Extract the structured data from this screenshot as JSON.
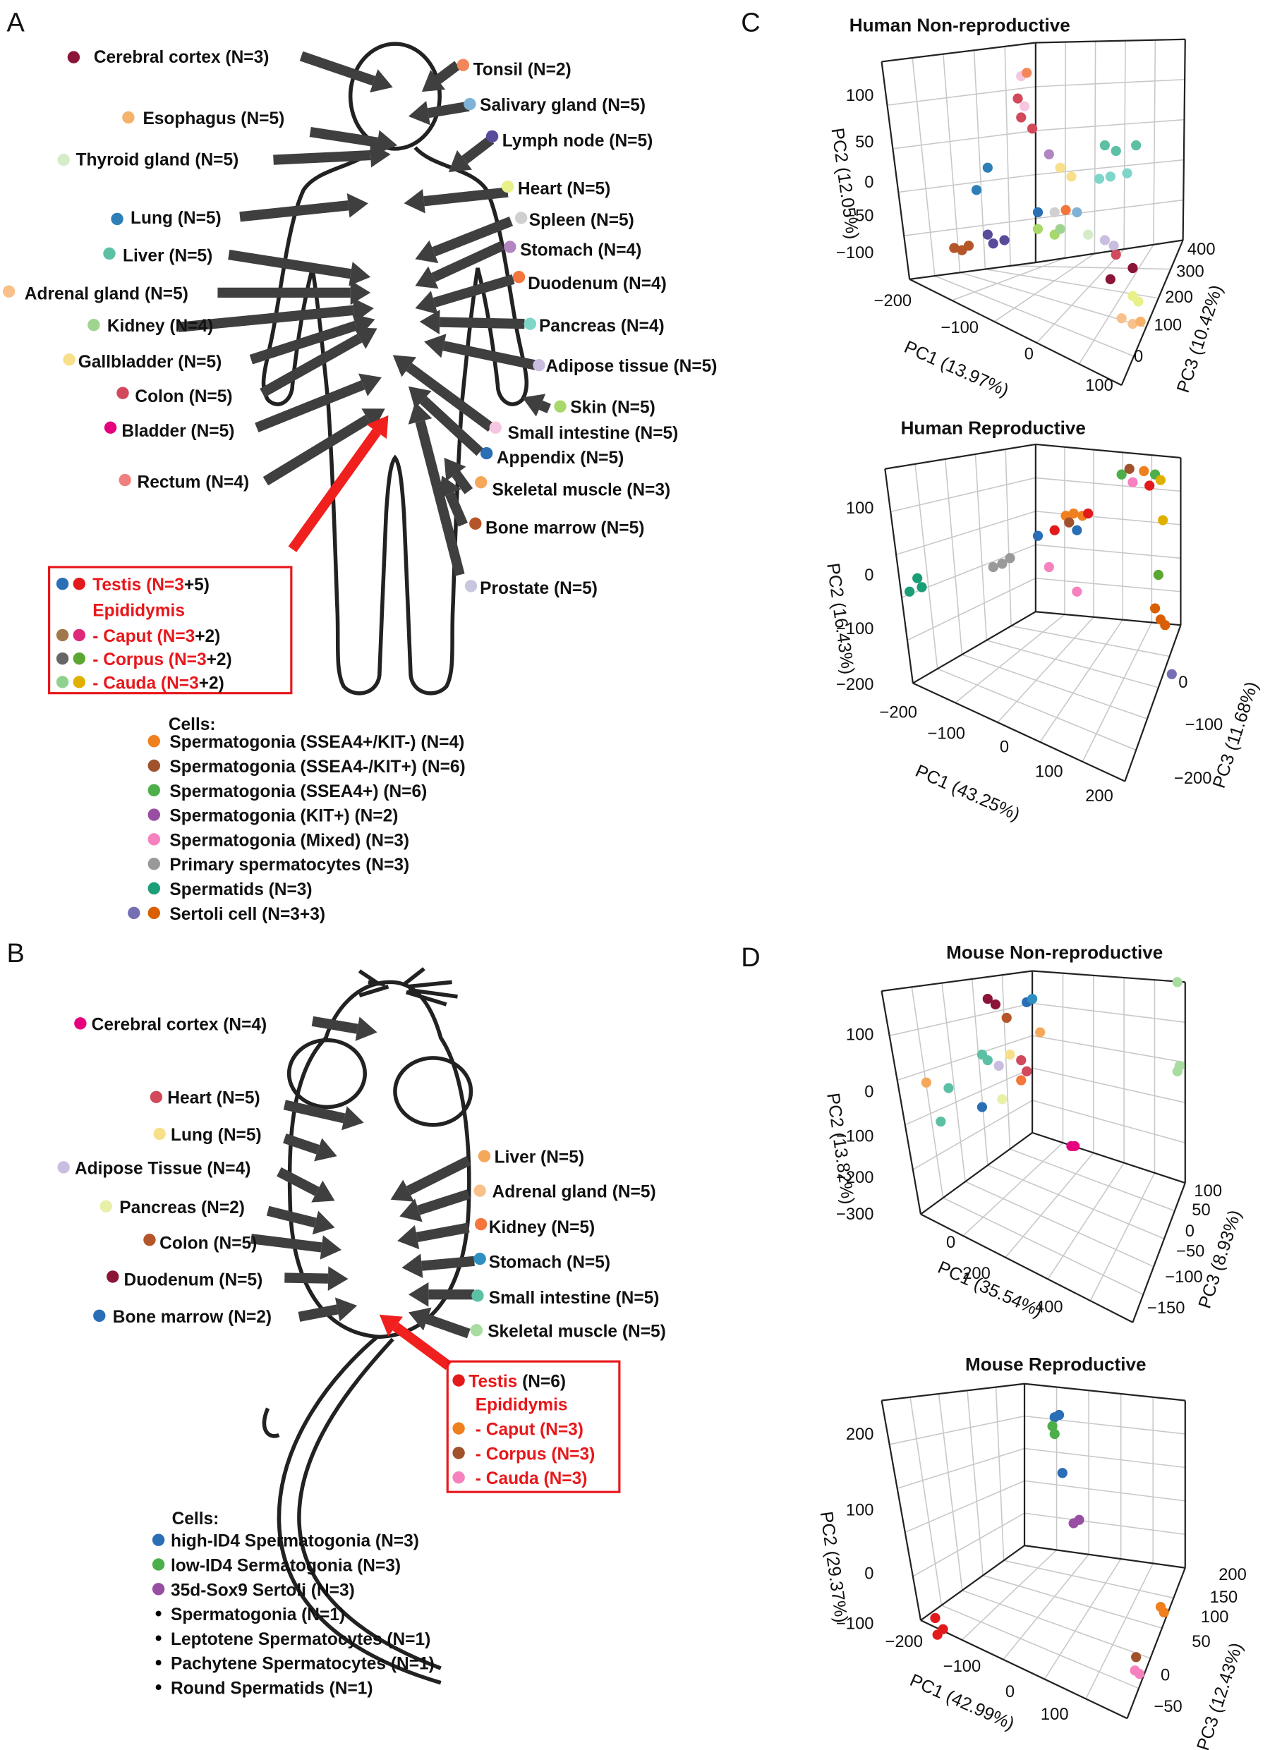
{
  "panel_a": {
    "letter": "A",
    "left_labels": [
      {
        "text": "Cerebral cortex (N=3)",
        "color": "#8b1538"
      },
      {
        "text": "Esophagus (N=5)",
        "color": "#f5b26b"
      },
      {
        "text": "Thyroid gland (N=5)",
        "color": "#d5ecc8"
      },
      {
        "text": "Lung (N=5)",
        "color": "#2e7fb8"
      },
      {
        "text": "Liver (N=5)",
        "color": "#5cc0a5"
      },
      {
        "text": "Adrenal gland (N=5)",
        "color": "#f9c08a"
      },
      {
        "text": "Kidney (N=4)",
        "color": "#9fd48f"
      },
      {
        "text": "Gallbladder (N=5)",
        "color": "#f8e08a"
      },
      {
        "text": "Colon (N=5)",
        "color": "#d1495b"
      },
      {
        "text": "Bladder (N=5)",
        "color": "#e6007e"
      },
      {
        "text": "Rectum (N=4)",
        "color": "#f08080"
      }
    ],
    "right_labels": [
      {
        "text": "Tonsil (N=2)",
        "color": "#f4875a"
      },
      {
        "text": "Salivary gland (N=5)",
        "color": "#7fb3d5"
      },
      {
        "text": "Lymph node (N=5)",
        "color": "#5a4a9a"
      },
      {
        "text": "Heart (N=5)",
        "color": "#e8f08a"
      },
      {
        "text": "Spleen (N=5)",
        "color": "#d0d0d0"
      },
      {
        "text": "Stomach (N=4)",
        "color": "#b085c0"
      },
      {
        "text": "Duodenum (N=4)",
        "color": "#f4763b"
      },
      {
        "text": "Pancreas (N=4)",
        "color": "#7fd6c8"
      },
      {
        "text": "Adipose tissue (N=5)",
        "color": "#c9bde0"
      },
      {
        "text": "Skin (N=5)",
        "color": "#a8d86a"
      },
      {
        "text": "Small intestine (N=5)",
        "color": "#f5c6e0"
      },
      {
        "text": "Appendix (N=5)",
        "color": "#2a6fb5"
      },
      {
        "text": "Skeletal muscle (N=3)",
        "color": "#f5a85a"
      },
      {
        "text": "Bone marrow (N=5)",
        "color": "#b5562a"
      },
      {
        "text": "Prostate (N=5)",
        "color": "#c9c6e0"
      }
    ],
    "box": [
      {
        "red": "Testis (N=3",
        "black": "+5)",
        "colors": [
          "#2a6fb5",
          "#e31a1c"
        ]
      },
      {
        "red": "Epididymis",
        "colors": []
      },
      {
        "red": "- Caput (N=3",
        "black": "+2)",
        "colors": [
          "#a0784a",
          "#e0287a"
        ]
      },
      {
        "red": "- Corpus (N=3",
        "black": "+2)",
        "colors": [
          "#666666",
          "#5aa832"
        ]
      },
      {
        "red": "- Cauda (N=3",
        "black": "+2)",
        "colors": [
          "#90d090",
          "#e0b000"
        ]
      }
    ],
    "cells_title": "Cells:",
    "cells": [
      {
        "text": "Spermatogonia (SSEA4+/KIT-) (N=4)",
        "colors": [
          "#f07f1e"
        ]
      },
      {
        "text": "Spermatogonia (SSEA4-/KIT+) (N=6)",
        "colors": [
          "#a0522d"
        ]
      },
      {
        "text": "Spermatogonia (SSEA4+) (N=6)",
        "colors": [
          "#4daf4a"
        ]
      },
      {
        "text": "Spermatogonia (KIT+) (N=2)",
        "colors": [
          "#984ea3"
        ]
      },
      {
        "text": "Spermatogonia (Mixed) (N=3)",
        "colors": [
          "#f781bf"
        ]
      },
      {
        "text": "Primary spermatocytes (N=3)",
        "colors": [
          "#999999"
        ]
      },
      {
        "text": "Spermatids (N=3)",
        "colors": [
          "#1b9e77"
        ]
      },
      {
        "text": "Sertoli cell (N=3+3)",
        "colors": [
          "#7570b3",
          "#d95f02"
        ]
      }
    ]
  },
  "panel_b": {
    "letter": "B",
    "left_labels": [
      {
        "text": "Cerebral cortex (N=4)",
        "color": "#e6007e"
      },
      {
        "text": "Heart (N=5)",
        "color": "#d1495b"
      },
      {
        "text": "Lung (N=5)",
        "color": "#f8e08a"
      },
      {
        "text": "Adipose Tissue (N=4)",
        "color": "#c9bde0"
      },
      {
        "text": "Pancreas (N=2)",
        "color": "#e8f0a8"
      },
      {
        "text": "Colon (N=5)",
        "color": "#b5562a"
      },
      {
        "text": "Duodenum (N=5)",
        "color": "#8b1538"
      },
      {
        "text": "Bone marrow (N=2)",
        "color": "#2a6fb5"
      }
    ],
    "right_labels": [
      {
        "text": "Liver (N=5)",
        "color": "#f5a85a"
      },
      {
        "text": "Adrenal gland (N=5)",
        "color": "#f9c08a"
      },
      {
        "text": "Kidney (N=5)",
        "color": "#f4763b"
      },
      {
        "text": "Stomach (N=5)",
        "color": "#2e8fc0"
      },
      {
        "text": "Small intestine (N=5)",
        "color": "#5cc0a5"
      },
      {
        "text": "Skeletal muscle (N=5)",
        "color": "#a8dca0"
      }
    ],
    "box": [
      {
        "red": "Testis",
        "black": " (N=6)",
        "colors": [
          "#e31a1c"
        ]
      },
      {
        "red": "Epididymis",
        "colors": []
      },
      {
        "red": "- Caput (N=3)",
        "colors": [
          "#f07f1e"
        ]
      },
      {
        "red": "- Corpus (N=3)",
        "colors": [
          "#a0522d"
        ]
      },
      {
        "red": "- Cauda (N=3)",
        "colors": [
          "#f781bf"
        ]
      }
    ],
    "cells_title": "Cells:",
    "cells": [
      {
        "text": "high-ID4 Spermatogonia (N=3)",
        "colors": [
          "#2a6fb5"
        ]
      },
      {
        "text": "low-ID4 Sermatogonia (N=3)",
        "colors": [
          "#4daf4a"
        ]
      },
      {
        "text": "35d-Sox9 Sertoli (N=3)",
        "colors": [
          "#984ea3"
        ]
      },
      {
        "text": "Spermatogonia (N=1)",
        "colors": [
          "#000000"
        ]
      },
      {
        "text": "Leptotene Spermatocytes (N=1)",
        "colors": [
          "#000000"
        ]
      },
      {
        "text": "Pachytene Spermatocytes (N=1)",
        "colors": [
          "#000000"
        ]
      },
      {
        "text": "Round Spermatids (N=1)",
        "colors": [
          "#000000"
        ]
      }
    ]
  },
  "panel_c": {
    "letter": "C",
    "plots": [
      {
        "title": "Human Non-reproductive",
        "pc1_label": "PC1 (13.97%)",
        "pc2_label": "PC2 (12.05%)",
        "pc3_label": "PC3 (10.42%)",
        "pc1_ticks": [
          "−200",
          "−100",
          "0",
          "100"
        ],
        "pc2_ticks": [
          "100",
          "50",
          "0",
          "−50",
          "−100"
        ],
        "pc3_ticks": [
          "400",
          "300",
          "200",
          "100",
          "0"
        ]
      },
      {
        "title": "Human Reproductive",
        "pc1_label": "PC1 (43.25%)",
        "pc2_label": "PC2 (16.43%)",
        "pc3_label": "PC3 (11.68%)",
        "pc1_ticks": [
          "−200",
          "−100",
          "0",
          "100",
          "200"
        ],
        "pc2_ticks": [
          "100",
          "0",
          "−100",
          "−200"
        ],
        "pc3_ticks": [
          "0",
          "−100",
          "−200"
        ]
      }
    ]
  },
  "panel_d": {
    "letter": "D",
    "plots": [
      {
        "title": "Mouse Non-reproductive",
        "pc1_label": "PC1 (35.54%)",
        "pc2_label": "PC2 (13.82%)",
        "pc3_label": "PC3 (8.93%)",
        "pc1_ticks": [
          "0",
          "200",
          "400"
        ],
        "pc2_ticks": [
          "100",
          "0",
          "−100",
          "−200",
          "−300"
        ],
        "pc3_ticks": [
          "100",
          "50",
          "0",
          "−50",
          "−100",
          "−150"
        ]
      },
      {
        "title": "Mouse Reproductive",
        "pc1_label": "PC1 (42.99%)",
        "pc2_label": "PC2 (29.37%)",
        "pc3_label": "PC3 (12.43%)",
        "pc1_ticks": [
          "−200",
          "−100",
          "0",
          "100"
        ],
        "pc2_ticks": [
          "200",
          "100",
          "0",
          "−100"
        ],
        "pc3_ticks": [
          "200",
          "150",
          "100",
          "50",
          "0",
          "−50"
        ]
      }
    ]
  }
}
